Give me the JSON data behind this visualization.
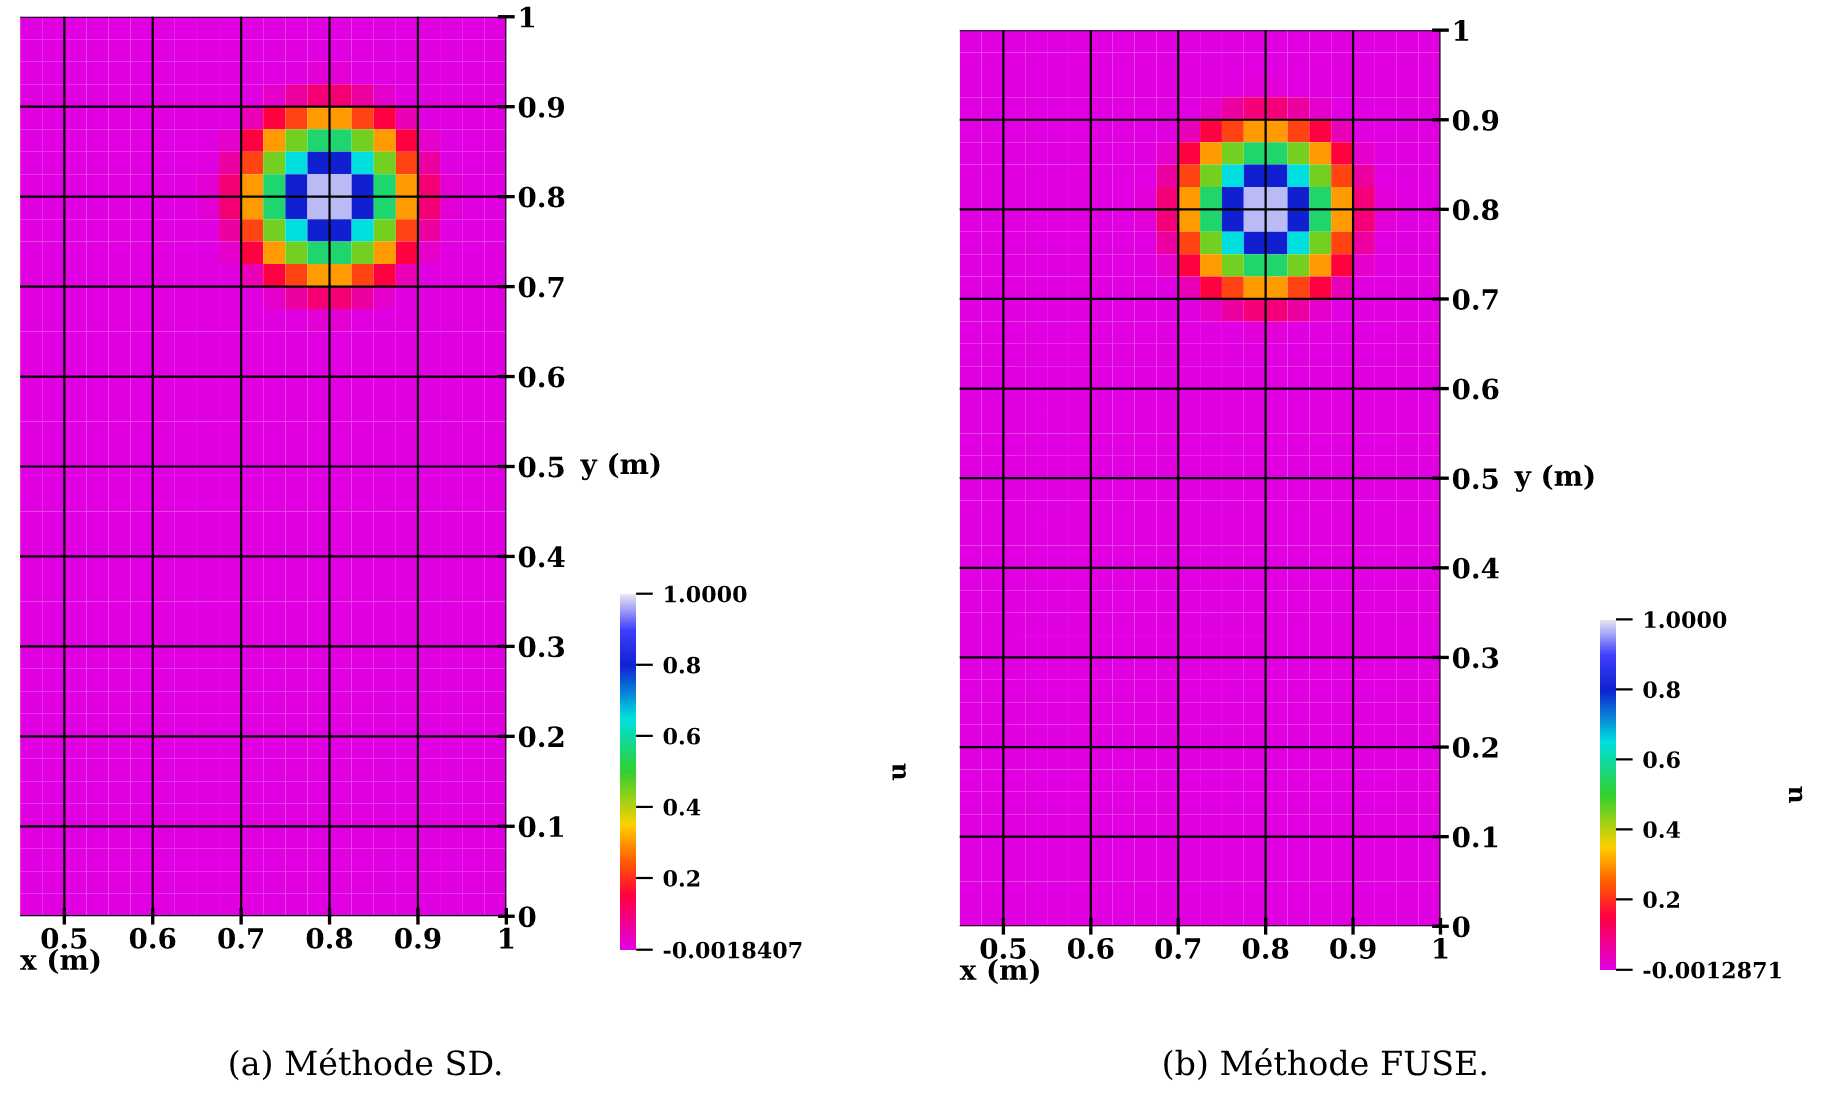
{
  "chart_data": [
    {
      "type": "heatmap",
      "xlabel": "x (m)",
      "ylabel": "y (m)",
      "clabel": "u",
      "annotations": [
        "(a) Méthode SD."
      ],
      "xlim": [
        0.45,
        1
      ],
      "ylim": [
        0,
        1
      ],
      "xticks": [
        0.5,
        0.6,
        0.7,
        0.8,
        0.9,
        1
      ],
      "yticks": [
        0,
        0.1,
        0.2,
        0.3,
        0.4,
        0.5,
        0.6,
        0.7,
        0.8,
        0.9,
        1
      ],
      "clim": [
        -0.0018407,
        1
      ],
      "cticks": [
        {
          "value": -0.0018407,
          "label": "-0.0018407"
        },
        0.2,
        0.4,
        0.6,
        0.8,
        {
          "value": 1,
          "label": "1.0000"
        }
      ],
      "grid": true,
      "cells": [
        [
          0,
          0,
          0,
          0,
          0,
          0,
          0,
          0,
          0,
          0,
          0,
          0,
          0,
          0,
          0,
          0,
          0,
          0,
          0,
          0,
          0,
          0
        ],
        [
          0,
          0,
          0,
          0,
          0,
          0,
          0,
          0,
          0,
          0,
          0,
          0,
          0,
          0,
          0,
          0,
          0,
          0,
          0,
          0,
          0,
          0
        ],
        [
          0,
          0,
          0,
          0,
          0,
          0,
          0,
          0,
          0,
          0,
          0,
          0,
          0,
          0.01,
          0.01,
          0,
          0,
          0,
          0,
          0,
          0,
          0
        ],
        [
          0,
          0,
          0,
          0,
          0,
          0,
          0,
          0,
          0,
          0,
          0,
          0.02,
          0.06,
          0.1,
          0.1,
          0.06,
          0.02,
          0,
          0,
          0,
          0,
          0
        ],
        [
          0,
          0,
          0,
          0,
          0,
          0,
          0,
          0,
          0,
          0,
          0.04,
          0.15,
          0.22,
          0.3,
          0.3,
          0.22,
          0.15,
          0.04,
          0,
          0,
          0,
          0
        ],
        [
          0,
          0,
          0,
          0,
          0,
          0,
          0,
          0,
          0,
          0.02,
          0.15,
          0.3,
          0.45,
          0.55,
          0.55,
          0.45,
          0.3,
          0.15,
          0.02,
          0,
          0,
          0
        ],
        [
          0,
          0,
          0,
          0,
          0,
          0,
          0,
          0,
          0,
          0.06,
          0.22,
          0.45,
          0.65,
          0.8,
          0.8,
          0.65,
          0.45,
          0.22,
          0.06,
          0,
          0,
          0
        ],
        [
          0,
          0,
          0,
          0,
          0,
          0,
          0,
          0,
          0.01,
          0.1,
          0.3,
          0.55,
          0.8,
          0.97,
          0.97,
          0.8,
          0.55,
          0.3,
          0.1,
          0.01,
          0,
          0
        ],
        [
          0,
          0,
          0,
          0,
          0,
          0,
          0,
          0,
          0.01,
          0.1,
          0.3,
          0.55,
          0.8,
          0.97,
          0.97,
          0.8,
          0.55,
          0.3,
          0.1,
          0.01,
          0,
          0
        ],
        [
          0,
          0,
          0,
          0,
          0,
          0,
          0,
          0,
          0,
          0.06,
          0.22,
          0.45,
          0.65,
          0.8,
          0.8,
          0.65,
          0.45,
          0.22,
          0.06,
          0,
          0,
          0
        ],
        [
          0,
          0,
          0,
          0,
          0,
          0,
          0,
          0,
          0,
          0.02,
          0.15,
          0.3,
          0.45,
          0.55,
          0.55,
          0.45,
          0.3,
          0.15,
          0.02,
          0,
          0,
          0
        ],
        [
          0,
          0,
          0,
          0,
          0,
          0,
          0,
          0,
          0,
          0,
          0.04,
          0.15,
          0.22,
          0.3,
          0.3,
          0.22,
          0.15,
          0.04,
          0,
          0,
          0,
          0
        ],
        [
          0,
          0,
          0,
          0,
          0,
          0,
          0,
          0,
          0,
          0,
          0,
          0.02,
          0.06,
          0.1,
          0.1,
          0.06,
          0.02,
          0,
          0,
          0,
          0,
          0
        ],
        [
          0,
          0,
          0,
          0,
          0,
          0,
          0,
          0,
          0,
          0,
          0,
          0,
          0,
          0.01,
          0.01,
          0,
          0,
          0,
          0,
          0,
          0,
          0
        ],
        [
          0,
          0,
          0,
          0,
          0,
          0,
          0,
          0,
          0,
          0,
          0,
          0,
          0,
          0,
          0,
          0,
          0,
          0,
          0,
          0,
          0,
          0
        ],
        [
          0,
          0,
          0,
          0,
          0,
          0,
          0,
          0,
          0,
          0,
          0,
          0,
          0,
          0,
          0,
          0,
          0,
          0,
          0,
          0,
          0,
          0
        ],
        [
          0,
          0,
          0,
          0,
          0,
          0,
          0,
          0,
          0,
          0,
          0,
          0,
          0,
          0,
          0,
          0,
          0,
          0,
          0,
          0,
          0,
          0
        ],
        [
          0,
          0,
          0,
          0,
          0,
          0,
          0,
          0,
          0,
          0,
          0,
          0,
          0,
          0,
          0,
          0,
          0,
          0,
          0,
          0,
          0,
          0
        ],
        [
          0,
          0,
          0,
          0,
          0,
          0,
          0,
          0,
          0,
          0,
          0,
          0,
          0,
          0,
          0,
          0,
          0,
          0,
          0,
          0,
          0,
          0
        ],
        [
          0,
          0,
          0,
          0,
          0,
          0,
          0,
          0,
          0,
          0,
          0,
          0,
          0,
          0,
          0,
          0,
          0,
          0,
          0,
          0,
          0,
          0
        ],
        [
          0,
          0,
          0,
          0,
          0,
          0,
          0,
          0,
          0,
          0,
          0,
          0,
          0,
          0,
          0,
          0,
          0,
          0,
          0,
          0,
          0,
          0
        ],
        [
          0,
          0,
          0,
          0,
          0,
          0,
          0,
          0,
          0,
          0,
          0,
          0,
          0,
          0,
          0,
          0,
          0,
          0,
          0,
          0,
          0,
          0
        ],
        [
          0,
          0,
          0,
          0,
          0,
          0,
          0,
          0,
          0,
          0,
          0,
          0,
          0,
          0,
          0,
          0,
          0,
          0,
          0,
          0,
          0,
          0
        ],
        [
          0,
          0,
          0,
          0,
          0,
          0,
          0,
          0,
          0,
          0,
          0,
          0,
          0,
          0,
          0,
          0,
          0,
          0,
          0,
          0,
          0,
          0
        ],
        [
          0,
          0,
          0,
          0,
          0,
          0,
          0,
          0,
          0,
          0,
          0,
          0,
          0,
          0,
          0,
          0,
          0,
          0,
          0,
          0,
          0,
          0
        ],
        [
          0,
          0,
          0,
          0,
          0,
          0,
          0,
          0,
          0,
          0,
          0,
          0,
          0,
          0,
          0,
          0,
          0,
          0,
          0,
          0,
          0,
          0
        ],
        [
          0,
          0,
          0,
          0,
          0,
          0,
          0,
          0,
          0,
          0,
          0,
          0,
          0,
          0,
          0,
          0,
          0,
          0,
          0,
          0,
          0,
          0
        ],
        [
          0,
          0,
          0,
          0,
          0,
          0,
          0,
          0,
          0,
          0,
          0,
          0,
          0,
          0,
          0,
          0,
          0,
          0,
          0,
          0,
          0,
          0
        ],
        [
          0,
          0,
          0,
          0,
          0,
          0,
          0,
          0,
          0,
          0,
          0,
          0,
          0,
          0,
          0,
          0,
          0,
          0,
          0,
          0,
          0,
          0
        ],
        [
          0,
          0,
          0,
          0,
          0,
          0,
          0,
          0,
          0,
          0,
          0,
          0,
          0,
          0,
          0,
          0,
          0,
          0,
          0,
          0,
          0,
          0
        ],
        [
          0,
          0,
          0,
          0,
          0,
          0,
          0,
          0,
          0,
          0,
          0,
          0,
          0,
          0,
          0,
          0,
          0,
          0,
          0,
          0,
          0,
          0
        ],
        [
          0,
          0,
          0,
          0,
          0,
          0,
          0,
          0,
          0,
          0,
          0,
          0,
          0,
          0,
          0,
          0,
          0,
          0,
          0,
          0,
          0,
          0
        ],
        [
          0,
          0,
          0,
          0,
          0,
          0,
          0,
          0,
          0,
          0,
          0,
          0,
          0,
          0,
          0,
          0,
          0,
          0,
          0,
          0,
          0,
          0
        ],
        [
          0,
          0,
          0,
          0,
          0,
          0,
          0,
          0,
          0,
          0,
          0,
          0,
          0,
          0,
          0,
          0,
          0,
          0,
          0,
          0,
          0,
          0
        ],
        [
          0,
          0,
          0,
          0,
          0,
          0,
          0,
          0,
          0,
          0,
          0,
          0,
          0,
          0,
          0,
          0,
          0,
          0,
          0,
          0,
          0,
          0
        ],
        [
          0,
          0,
          0,
          0,
          0,
          0,
          0,
          0,
          0,
          0,
          0,
          0,
          0,
          0,
          0,
          0,
          0,
          0,
          0,
          0,
          0,
          0
        ],
        [
          0,
          0,
          0,
          0,
          0,
          0,
          0,
          0,
          0,
          0,
          0,
          0,
          0,
          0,
          0,
          0,
          0,
          0,
          0,
          0,
          0,
          0
        ],
        [
          0,
          0,
          0,
          0,
          0,
          0,
          0,
          0,
          0,
          0,
          0,
          0,
          0,
          0,
          0,
          0,
          0,
          0,
          0,
          0,
          0,
          0
        ],
        [
          0,
          0,
          0,
          0,
          0,
          0,
          0,
          0,
          0,
          0,
          0,
          0,
          0,
          0,
          0,
          0,
          0,
          0,
          0,
          0,
          0,
          0
        ],
        [
          0,
          0,
          0,
          0,
          0,
          0,
          0,
          0,
          0,
          0,
          0,
          0,
          0,
          0,
          0,
          0,
          0,
          0,
          0,
          0,
          0,
          0
        ]
      ]
    },
    {
      "type": "heatmap",
      "xlabel": "x (m)",
      "ylabel": "y (m)",
      "clabel": "u",
      "annotations": [
        "(b) Méthode FUSE."
      ],
      "xlim": [
        0.45,
        1
      ],
      "ylim": [
        0,
        1
      ],
      "xticks": [
        0.5,
        0.6,
        0.7,
        0.8,
        0.9,
        1
      ],
      "yticks": [
        0,
        0.1,
        0.2,
        0.3,
        0.4,
        0.5,
        0.6,
        0.7,
        0.8,
        0.9,
        1
      ],
      "clim": [
        -0.0012871,
        1
      ],
      "cticks": [
        {
          "value": -0.0012871,
          "label": "-0.0012871"
        },
        0.2,
        0.4,
        0.6,
        0.8,
        {
          "value": 1,
          "label": "1.0000"
        }
      ],
      "grid": true,
      "cells": [
        [
          0,
          0,
          0,
          0,
          0,
          0,
          0,
          0,
          0,
          0,
          0,
          0,
          0,
          0,
          0,
          0,
          0,
          0,
          0,
          0,
          0,
          0
        ],
        [
          0,
          0,
          0,
          0,
          0,
          0,
          0,
          0,
          0,
          0,
          0,
          0,
          0,
          0,
          0,
          0,
          0,
          0,
          0,
          0,
          0,
          0
        ],
        [
          0,
          0,
          0,
          0,
          0,
          0,
          0,
          0,
          0,
          0,
          0,
          0,
          0,
          0.01,
          0.01,
          0,
          0,
          0,
          0,
          0,
          0,
          0
        ],
        [
          0,
          0,
          0,
          0,
          0,
          0,
          0,
          0,
          0,
          0,
          0,
          0.02,
          0.06,
          0.1,
          0.1,
          0.06,
          0.02,
          0,
          0,
          0,
          0,
          0
        ],
        [
          0,
          0,
          0,
          0,
          0,
          0,
          0,
          0,
          0,
          0,
          0.04,
          0.15,
          0.22,
          0.3,
          0.3,
          0.22,
          0.15,
          0.04,
          0,
          0,
          0,
          0
        ],
        [
          0,
          0,
          0,
          0,
          0,
          0,
          0,
          0,
          0,
          0.02,
          0.15,
          0.3,
          0.45,
          0.55,
          0.55,
          0.45,
          0.3,
          0.15,
          0.02,
          0,
          0,
          0
        ],
        [
          0,
          0,
          0,
          0,
          0,
          0,
          0,
          0,
          0,
          0.06,
          0.22,
          0.45,
          0.65,
          0.8,
          0.8,
          0.65,
          0.45,
          0.22,
          0.06,
          0,
          0,
          0
        ],
        [
          0,
          0,
          0,
          0,
          0,
          0,
          0,
          0,
          0.01,
          0.1,
          0.3,
          0.55,
          0.8,
          0.97,
          0.97,
          0.8,
          0.55,
          0.3,
          0.1,
          0.01,
          0,
          0
        ],
        [
          0,
          0,
          0,
          0,
          0,
          0,
          0,
          0,
          0.01,
          0.1,
          0.3,
          0.55,
          0.8,
          0.97,
          0.97,
          0.8,
          0.55,
          0.3,
          0.1,
          0.01,
          0,
          0
        ],
        [
          0,
          0,
          0,
          0,
          0,
          0,
          0,
          0,
          0,
          0.06,
          0.22,
          0.45,
          0.65,
          0.8,
          0.8,
          0.65,
          0.45,
          0.22,
          0.06,
          0,
          0,
          0
        ],
        [
          0,
          0,
          0,
          0,
          0,
          0,
          0,
          0,
          0,
          0.02,
          0.15,
          0.3,
          0.45,
          0.55,
          0.55,
          0.45,
          0.3,
          0.15,
          0.02,
          0,
          0,
          0
        ],
        [
          0,
          0,
          0,
          0,
          0,
          0,
          0,
          0,
          0,
          0,
          0.04,
          0.15,
          0.22,
          0.3,
          0.3,
          0.22,
          0.15,
          0.04,
          0,
          0,
          0,
          0
        ],
        [
          0,
          0,
          0,
          0,
          0,
          0,
          0,
          0,
          0,
          0,
          0,
          0.02,
          0.06,
          0.1,
          0.1,
          0.06,
          0.02,
          0,
          0,
          0,
          0,
          0
        ],
        [
          0,
          0,
          0,
          0,
          0,
          0,
          0,
          0,
          0,
          0,
          0,
          0,
          0,
          0.01,
          0.01,
          0,
          0,
          0,
          0,
          0,
          0,
          0
        ],
        [
          0,
          0,
          0,
          0,
          0,
          0,
          0,
          0,
          0,
          0,
          0,
          0,
          0,
          0,
          0,
          0,
          0,
          0,
          0,
          0,
          0,
          0
        ],
        [
          0,
          0,
          0,
          0,
          0,
          0,
          0,
          0,
          0,
          0,
          0,
          0,
          0,
          0,
          0,
          0,
          0,
          0,
          0,
          0,
          0,
          0
        ],
        [
          0,
          0,
          0,
          0,
          0,
          0,
          0,
          0,
          0,
          0,
          0,
          0,
          0,
          0,
          0,
          0,
          0,
          0,
          0,
          0,
          0,
          0
        ],
        [
          0,
          0,
          0,
          0,
          0,
          0,
          0,
          0,
          0,
          0,
          0,
          0,
          0,
          0,
          0,
          0,
          0,
          0,
          0,
          0,
          0,
          0
        ],
        [
          0,
          0,
          0,
          0,
          0,
          0,
          0,
          0,
          0,
          0,
          0,
          0,
          0,
          0,
          0,
          0,
          0,
          0,
          0,
          0,
          0,
          0
        ],
        [
          0,
          0,
          0,
          0,
          0,
          0,
          0,
          0,
          0,
          0,
          0,
          0,
          0,
          0,
          0,
          0,
          0,
          0,
          0,
          0,
          0,
          0
        ],
        [
          0,
          0,
          0,
          0,
          0,
          0,
          0,
          0,
          0,
          0,
          0,
          0,
          0,
          0,
          0,
          0,
          0,
          0,
          0,
          0,
          0,
          0
        ],
        [
          0,
          0,
          0,
          0,
          0,
          0,
          0,
          0,
          0,
          0,
          0,
          0,
          0,
          0,
          0,
          0,
          0,
          0,
          0,
          0,
          0,
          0
        ],
        [
          0,
          0,
          0,
          0,
          0,
          0,
          0,
          0,
          0,
          0,
          0,
          0,
          0,
          0,
          0,
          0,
          0,
          0,
          0,
          0,
          0,
          0
        ],
        [
          0,
          0,
          0,
          0,
          0,
          0,
          0,
          0,
          0,
          0,
          0,
          0,
          0,
          0,
          0,
          0,
          0,
          0,
          0,
          0,
          0,
          0
        ],
        [
          0,
          0,
          0,
          0,
          0,
          0,
          0,
          0,
          0,
          0,
          0,
          0,
          0,
          0,
          0,
          0,
          0,
          0,
          0,
          0,
          0,
          0
        ],
        [
          0,
          0,
          0,
          0,
          0,
          0,
          0,
          0,
          0,
          0,
          0,
          0,
          0,
          0,
          0,
          0,
          0,
          0,
          0,
          0,
          0,
          0
        ],
        [
          0,
          0,
          0,
          0,
          0,
          0,
          0,
          0,
          0,
          0,
          0,
          0,
          0,
          0,
          0,
          0,
          0,
          0,
          0,
          0,
          0,
          0
        ],
        [
          0,
          0,
          0,
          0,
          0,
          0,
          0,
          0,
          0,
          0,
          0,
          0,
          0,
          0,
          0,
          0,
          0,
          0,
          0,
          0,
          0,
          0
        ],
        [
          0,
          0,
          0,
          0,
          0,
          0,
          0,
          0,
          0,
          0,
          0,
          0,
          0,
          0,
          0,
          0,
          0,
          0,
          0,
          0,
          0,
          0
        ],
        [
          0,
          0,
          0,
          0,
          0,
          0,
          0,
          0,
          0,
          0,
          0,
          0,
          0,
          0,
          0,
          0,
          0,
          0,
          0,
          0,
          0,
          0
        ],
        [
          0,
          0,
          0,
          0,
          0,
          0,
          0,
          0,
          0,
          0,
          0,
          0,
          0,
          0,
          0,
          0,
          0,
          0,
          0,
          0,
          0,
          0
        ],
        [
          0,
          0,
          0,
          0,
          0,
          0,
          0,
          0,
          0,
          0,
          0,
          0,
          0,
          0,
          0,
          0,
          0,
          0,
          0,
          0,
          0,
          0
        ],
        [
          0,
          0,
          0,
          0,
          0,
          0,
          0,
          0,
          0,
          0,
          0,
          0,
          0,
          0,
          0,
          0,
          0,
          0,
          0,
          0,
          0,
          0
        ],
        [
          0,
          0,
          0,
          0,
          0,
          0,
          0,
          0,
          0,
          0,
          0,
          0,
          0,
          0,
          0,
          0,
          0,
          0,
          0,
          0,
          0,
          0
        ],
        [
          0,
          0,
          0,
          0,
          0,
          0,
          0,
          0,
          0,
          0,
          0,
          0,
          0,
          0,
          0,
          0,
          0,
          0,
          0,
          0,
          0,
          0
        ],
        [
          0,
          0,
          0,
          0,
          0,
          0,
          0,
          0,
          0,
          0,
          0,
          0,
          0,
          0,
          0,
          0,
          0,
          0,
          0,
          0,
          0,
          0
        ],
        [
          0,
          0,
          0,
          0,
          0,
          0,
          0,
          0,
          0,
          0,
          0,
          0,
          0,
          0,
          0,
          0,
          0,
          0,
          0,
          0,
          0,
          0
        ],
        [
          0,
          0,
          0,
          0,
          0,
          0,
          0,
          0,
          0,
          0,
          0,
          0,
          0,
          0,
          0,
          0,
          0,
          0,
          0,
          0,
          0,
          0
        ],
        [
          0,
          0,
          0,
          0,
          0,
          0,
          0,
          0,
          0,
          0,
          0,
          0,
          0,
          0,
          0,
          0,
          0,
          0,
          0,
          0,
          0,
          0
        ],
        [
          0,
          0,
          0,
          0,
          0,
          0,
          0,
          0,
          0,
          0,
          0,
          0,
          0,
          0,
          0,
          0,
          0,
          0,
          0,
          0,
          0,
          0
        ]
      ]
    }
  ]
}
